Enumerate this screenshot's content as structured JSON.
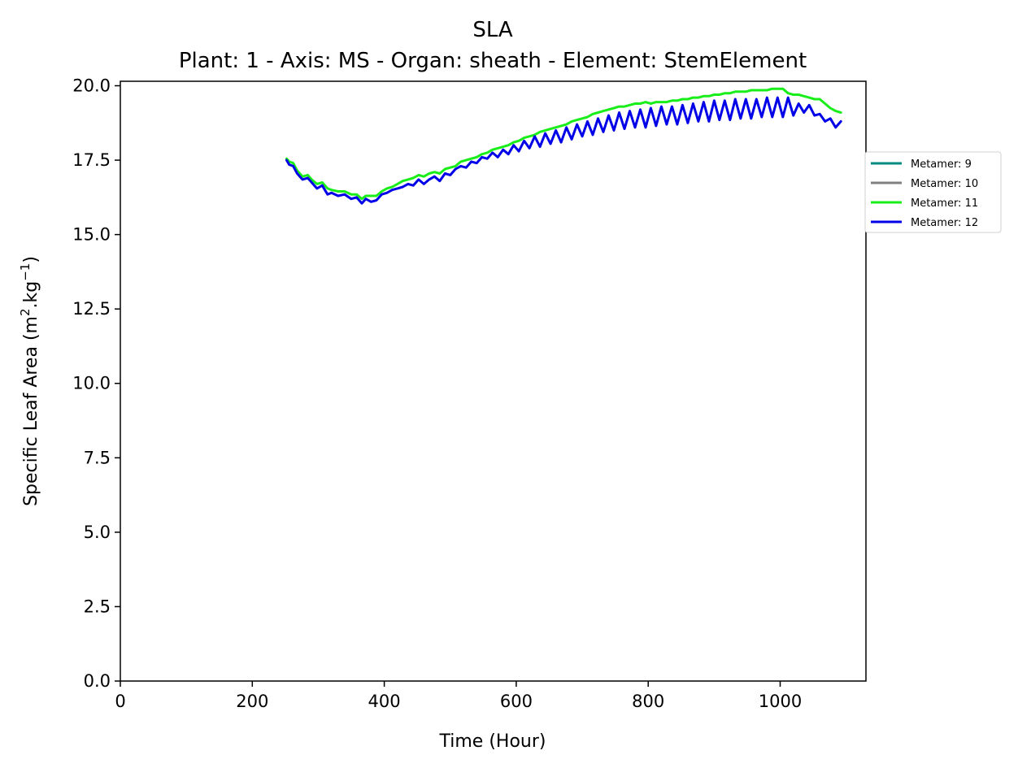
{
  "chart_data": {
    "type": "line",
    "title": "SLA",
    "subtitle": "Plant: 1 - Axis: MS - Organ: sheath - Element: StemElement",
    "xlabel": "Time (Hour)",
    "ylabel_main": "Specific Leaf Area (m",
    "ylabel_sup1": "2",
    "ylabel_mid": ".kg",
    "ylabel_sup2": "−1",
    "ylabel_end": ")",
    "xlim": [
      0,
      1130
    ],
    "ylim": [
      0,
      20.15
    ],
    "xticks": [
      0,
      200,
      400,
      600,
      800,
      1000
    ],
    "xtick_labels": [
      "0",
      "200",
      "400",
      "600",
      "800",
      "1000"
    ],
    "yticks": [
      0,
      2.5,
      5,
      7.5,
      10,
      12.5,
      15,
      17.5,
      20
    ],
    "ytick_labels": [
      "0.0",
      "2.5",
      "5.0",
      "7.5",
      "10.0",
      "12.5",
      "15.0",
      "17.5",
      "20.0"
    ],
    "grid": false,
    "legend_position": "right-outside-top",
    "series": [
      {
        "name": "Metamer: 9",
        "color": "#008b80",
        "x": [],
        "values": []
      },
      {
        "name": "Metamer: 10",
        "color": "#808080",
        "x": [],
        "values": []
      },
      {
        "name": "Metamer: 11",
        "color": "#1aee1a",
        "x": [
          252,
          256,
          262,
          268,
          276,
          284,
          290,
          298,
          306,
          314,
          320,
          330,
          340,
          350,
          358,
          366,
          372,
          380,
          388,
          396,
          404,
          412,
          420,
          428,
          436,
          444,
          452,
          460,
          468,
          476,
          484,
          492,
          500,
          508,
          516,
          524,
          532,
          540,
          548,
          556,
          564,
          572,
          580,
          588,
          596,
          604,
          612,
          620,
          628,
          636,
          644,
          652,
          660,
          668,
          676,
          684,
          692,
          700,
          708,
          716,
          724,
          732,
          740,
          748,
          756,
          764,
          772,
          780,
          788,
          796,
          804,
          812,
          820,
          828,
          836,
          844,
          852,
          860,
          868,
          876,
          884,
          892,
          900,
          908,
          916,
          924,
          932,
          940,
          948,
          956,
          964,
          972,
          980,
          988,
          996,
          1004,
          1012,
          1020,
          1028,
          1036,
          1044,
          1052,
          1060,
          1068,
          1076,
          1084,
          1092
        ],
        "values": [
          17.55,
          17.45,
          17.4,
          17.15,
          16.95,
          17.0,
          16.85,
          16.7,
          16.75,
          16.55,
          16.5,
          16.45,
          16.45,
          16.35,
          16.35,
          16.2,
          16.3,
          16.3,
          16.3,
          16.45,
          16.55,
          16.6,
          16.7,
          16.8,
          16.85,
          16.9,
          17.0,
          16.95,
          17.05,
          17.1,
          17.05,
          17.2,
          17.25,
          17.3,
          17.45,
          17.5,
          17.55,
          17.6,
          17.7,
          17.75,
          17.85,
          17.9,
          17.95,
          18.0,
          18.1,
          18.15,
          18.25,
          18.3,
          18.35,
          18.45,
          18.5,
          18.55,
          18.6,
          18.65,
          18.7,
          18.8,
          18.85,
          18.9,
          18.95,
          19.05,
          19.1,
          19.15,
          19.2,
          19.25,
          19.3,
          19.3,
          19.35,
          19.4,
          19.4,
          19.45,
          19.4,
          19.45,
          19.45,
          19.45,
          19.5,
          19.5,
          19.55,
          19.55,
          19.6,
          19.6,
          19.65,
          19.65,
          19.7,
          19.7,
          19.75,
          19.75,
          19.8,
          19.8,
          19.8,
          19.85,
          19.85,
          19.85,
          19.85,
          19.9,
          19.9,
          19.9,
          19.75,
          19.7,
          19.7,
          19.65,
          19.6,
          19.55,
          19.55,
          19.4,
          19.25,
          19.15,
          19.1
        ]
      },
      {
        "name": "Metamer: 12",
        "color": "#0000e8",
        "x": [
          252,
          256,
          262,
          268,
          276,
          284,
          290,
          298,
          306,
          314,
          320,
          330,
          340,
          350,
          358,
          366,
          372,
          380,
          388,
          396,
          404,
          412,
          420,
          428,
          436,
          444,
          452,
          460,
          468,
          476,
          484,
          492,
          500,
          508,
          516,
          524,
          532,
          540,
          548,
          556,
          564,
          572,
          580,
          588,
          596,
          604,
          612,
          620,
          628,
          636,
          644,
          652,
          660,
          668,
          676,
          684,
          692,
          700,
          708,
          716,
          724,
          732,
          740,
          748,
          756,
          764,
          772,
          780,
          788,
          796,
          804,
          812,
          820,
          828,
          836,
          844,
          852,
          860,
          868,
          876,
          884,
          892,
          900,
          908,
          916,
          924,
          932,
          940,
          948,
          956,
          964,
          972,
          980,
          988,
          996,
          1004,
          1012,
          1020,
          1028,
          1036,
          1044,
          1052,
          1060,
          1068,
          1076,
          1084,
          1092
        ],
        "values": [
          17.5,
          17.35,
          17.3,
          17.05,
          16.85,
          16.9,
          16.75,
          16.55,
          16.65,
          16.35,
          16.4,
          16.3,
          16.35,
          16.2,
          16.25,
          16.05,
          16.2,
          16.1,
          16.15,
          16.35,
          16.4,
          16.5,
          16.55,
          16.6,
          16.7,
          16.65,
          16.85,
          16.7,
          16.85,
          16.95,
          16.8,
          17.05,
          17.0,
          17.2,
          17.3,
          17.25,
          17.45,
          17.4,
          17.6,
          17.55,
          17.75,
          17.6,
          17.85,
          17.7,
          18.0,
          17.8,
          18.15,
          17.9,
          18.3,
          17.95,
          18.4,
          18.05,
          18.5,
          18.1,
          18.6,
          18.2,
          18.7,
          18.3,
          18.8,
          18.35,
          18.9,
          18.45,
          19.0,
          18.5,
          19.1,
          18.55,
          19.15,
          18.6,
          19.2,
          18.6,
          19.25,
          18.65,
          19.3,
          18.7,
          19.3,
          18.7,
          19.35,
          18.75,
          19.4,
          18.8,
          19.45,
          18.8,
          19.5,
          18.85,
          19.5,
          18.85,
          19.55,
          18.9,
          19.55,
          18.9,
          19.55,
          18.95,
          19.6,
          18.95,
          19.6,
          18.95,
          19.6,
          19.0,
          19.4,
          19.1,
          19.35,
          19.0,
          19.05,
          18.8,
          18.9,
          18.6,
          18.8
        ]
      }
    ]
  }
}
